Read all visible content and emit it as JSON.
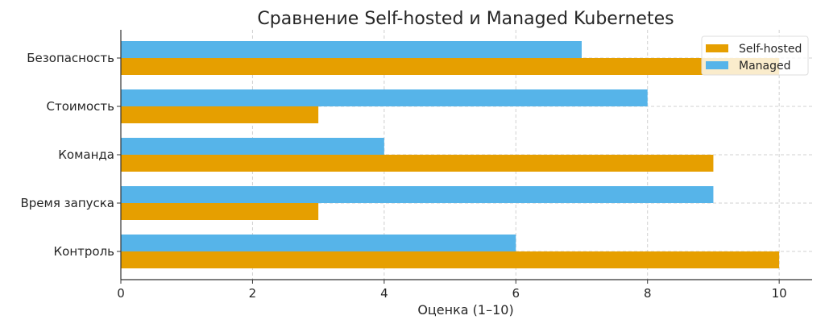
{
  "chart_data": {
    "type": "bar",
    "orientation": "horizontal",
    "title": "Сравнение Self-hosted и Managed Kubernetes",
    "xlabel": "Оценка (1–10)",
    "ylabel": "",
    "categories": [
      "Безопасность",
      "Стоимость",
      "Команда",
      "Время запуска",
      "Контроль"
    ],
    "series": [
      {
        "name": "Self-hosted",
        "color": "#E69F00",
        "values": [
          10,
          3,
          9,
          3,
          10
        ]
      },
      {
        "name": "Managed",
        "color": "#56B4E9",
        "values": [
          7,
          8,
          4,
          9,
          6
        ]
      }
    ],
    "xlim": [
      0,
      10.5
    ],
    "xticks": [
      "0",
      "2",
      "4",
      "6",
      "8",
      "10"
    ],
    "grid": true,
    "legend": "top-right"
  }
}
